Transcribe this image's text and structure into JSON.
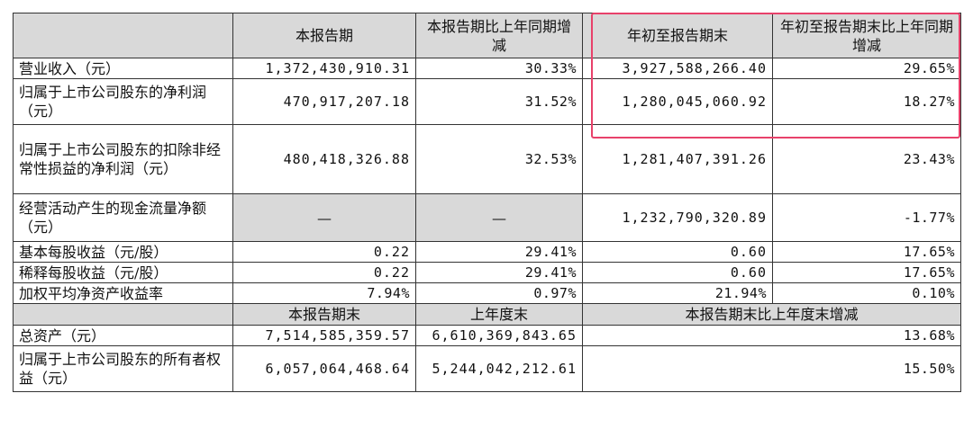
{
  "headers": {
    "current_period": "本报告期",
    "current_vs_last_year": "本报告期比上年同期增减",
    "ytd": "年初至报告期末",
    "ytd_vs_last_year": "年初至报告期末比上年同期增减"
  },
  "rows": [
    {
      "label": "营业收入（元）",
      "c1": "1,372,430,910.31",
      "c2": "30.33%",
      "c3": "3,927,588,266.40",
      "c4": "29.65%"
    },
    {
      "label": "归属于上市公司股东的净利润（元）",
      "c1": "470,917,207.18",
      "c2": "31.52%",
      "c3": "1,280,045,060.92",
      "c4": "18.27%"
    },
    {
      "label": "归属于上市公司股东的扣除非经常性损益的净利润（元）",
      "c1": "480,418,326.88",
      "c2": "32.53%",
      "c3": "1,281,407,391.26",
      "c4": "23.43%"
    },
    {
      "label": "经营活动产生的现金流量净额（元）",
      "c1": "—",
      "c2": "—",
      "c3": "1,232,790,320.89",
      "c4": "-1.77%"
    },
    {
      "label": "基本每股收益（元/股）",
      "c1": "0.22",
      "c2": "29.41%",
      "c3": "0.60",
      "c4": "17.65%"
    },
    {
      "label": "稀释每股收益（元/股）",
      "c1": "0.22",
      "c2": "29.41%",
      "c3": "0.60",
      "c4": "17.65%"
    },
    {
      "label": "加权平均净资产收益率",
      "c1": "7.94%",
      "c2": "0.97%",
      "c3": "21.94%",
      "c4": "0.10%"
    }
  ],
  "balance_headers": {
    "period_end": "本报告期末",
    "last_year_end": "上年度末",
    "change": "本报告期末比上年度末增减"
  },
  "balance_rows": [
    {
      "label": "总资产（元）",
      "c1": "7,514,585,359.57",
      "c2": "6,610,369,843.65",
      "c3": "13.68%"
    },
    {
      "label": "归属于上市公司股东的所有者权益（元）",
      "c1": "6,057,064,468.64",
      "c2": "5,244,042,212.61",
      "c3": "15.50%"
    }
  ]
}
